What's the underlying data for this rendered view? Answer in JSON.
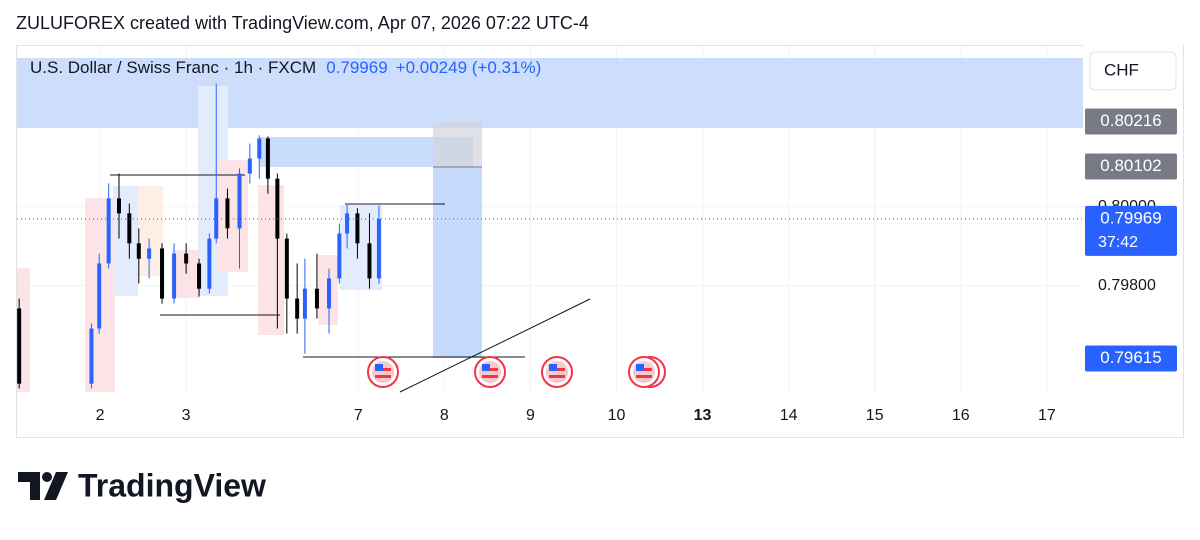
{
  "header": {
    "text": "ZULUFOREX created with TradingView.com, Apr 07, 2026 07:22 UTC-4"
  },
  "chart_data": {
    "type": "candlestick",
    "title": "U.S. Dollar / Swiss Franc · 1h · FXCM",
    "change": "+0.00249 (+0.31%)",
    "currency": "CHF",
    "x": [
      -0.94,
      -0.1,
      -0.01,
      0.1,
      0.22,
      0.34,
      0.45,
      0.57,
      0.72,
      0.86,
      1.0,
      1.15,
      1.27,
      1.35,
      1.48,
      1.62,
      1.74,
      1.85,
      1.95,
      2.06,
      2.17,
      2.29,
      2.38,
      2.52,
      2.66,
      2.78,
      2.87,
      2.99,
      3.13,
      3.24
    ],
    "open": [
      0.79742,
      0.79551,
      0.79691,
      0.79856,
      0.80021,
      0.79983,
      0.79907,
      0.79868,
      0.79894,
      0.79767,
      0.79881,
      0.79856,
      0.79792,
      0.79919,
      0.80021,
      0.79945,
      0.80084,
      0.80122,
      0.80173,
      0.80071,
      0.79919,
      0.79767,
      0.79716,
      0.79792,
      0.79742,
      0.79818,
      0.79932,
      0.79983,
      0.79907,
      0.79818
    ],
    "high": [
      0.79767,
      0.79704,
      0.79881,
      0.80059,
      0.80084,
      0.80008,
      0.79945,
      0.79919,
      0.79907,
      0.79907,
      0.79907,
      0.79868,
      0.79932,
      0.80312,
      0.80046,
      0.80097,
      0.8016,
      0.80181,
      0.80178,
      0.80084,
      0.79932,
      0.79856,
      0.79868,
      0.79881,
      0.79843,
      0.79957,
      0.80008,
      0.79996,
      0.79983,
      0.80003
    ],
    "low": [
      0.79539,
      0.79539,
      0.79678,
      0.79843,
      0.79919,
      0.79868,
      0.79805,
      0.79818,
      0.79754,
      0.79754,
      0.7983,
      0.79772,
      0.7978,
      0.79907,
      0.79919,
      0.79843,
      0.80059,
      0.80071,
      0.80033,
      0.79691,
      0.79678,
      0.79678,
      0.79627,
      0.79716,
      0.79678,
      0.79805,
      0.79894,
      0.79868,
      0.79792,
      0.79805
    ],
    "close": [
      0.79551,
      0.79691,
      0.79856,
      0.80021,
      0.79983,
      0.79907,
      0.79868,
      0.79894,
      0.79767,
      0.79881,
      0.79856,
      0.79792,
      0.79919,
      0.80021,
      0.79945,
      0.80084,
      0.80122,
      0.80173,
      0.80071,
      0.79919,
      0.79767,
      0.79716,
      0.79792,
      0.79742,
      0.79818,
      0.79932,
      0.79983,
      0.79907,
      0.79818,
      0.79969
    ],
    "up_color": "#2962ff",
    "down_color": "#000000",
    "xlim": [
      -0.965,
      11.42
    ],
    "xticks": [
      {
        "value": 0,
        "label": "2"
      },
      {
        "value": 1,
        "label": "3"
      },
      {
        "value": 3,
        "label": "7"
      },
      {
        "value": 4,
        "label": "8"
      },
      {
        "value": 5,
        "label": "9"
      },
      {
        "value": 6,
        "label": "10"
      },
      {
        "value": 7,
        "label": "13"
      },
      {
        "value": 8,
        "label": "14"
      },
      {
        "value": 9,
        "label": "15"
      },
      {
        "value": 10,
        "label": "16"
      },
      {
        "value": 11,
        "label": "17"
      }
    ],
    "bold_xtick": 6,
    "ylim": [
      0.7953,
      0.8041
    ],
    "yticks": [
      {
        "value": 0.798,
        "label": "0.79800"
      },
      {
        "value": 0.8,
        "label": "0.80000"
      }
    ],
    "price_labels": [
      {
        "value": 0.80216,
        "label": "0.80216",
        "color": "#787b86"
      },
      {
        "value": 0.80102,
        "label": "0.80102",
        "color": "#787b86"
      },
      {
        "value": 0.79615,
        "label": "0.79615",
        "color": "#2962ff"
      },
      {
        "value": 0.79969,
        "label": "0.79969",
        "color": "#2962ff",
        "countdown": "37:42"
      }
    ]
  },
  "footer": {
    "logo": "TradingView"
  }
}
